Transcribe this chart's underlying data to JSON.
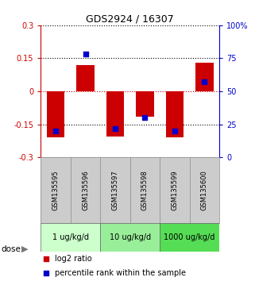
{
  "title": "GDS2924 / 16307",
  "samples": [
    "GSM135595",
    "GSM135596",
    "GSM135597",
    "GSM135598",
    "GSM135599",
    "GSM135600"
  ],
  "log2_ratio": [
    -0.21,
    0.12,
    -0.205,
    -0.115,
    -0.21,
    0.13
  ],
  "percentile_rank": [
    20,
    78,
    22,
    30,
    20,
    57
  ],
  "bar_color": "#cc0000",
  "dot_color": "#0000cc",
  "ylim": [
    -0.3,
    0.3
  ],
  "y2lim": [
    0,
    100
  ],
  "yticks": [
    -0.3,
    -0.15,
    0,
    0.15,
    0.3
  ],
  "y2ticks": [
    0,
    25,
    50,
    75,
    100
  ],
  "ytick_labels": [
    "-0.3",
    "-0.15",
    "0",
    "0.15",
    "0.3"
  ],
  "y2tick_labels": [
    "0",
    "25",
    "50",
    "75",
    "100%"
  ],
  "dose_groups": [
    {
      "label": "1 ug/kg/d",
      "samples": [
        0,
        1
      ],
      "color": "#ccffcc"
    },
    {
      "label": "10 ug/kg/d",
      "samples": [
        2,
        3
      ],
      "color": "#99ee99"
    },
    {
      "label": "1000 ug/kg/d",
      "samples": [
        4,
        5
      ],
      "color": "#55dd55"
    }
  ],
  "dose_label": "dose",
  "legend_red": "log2 ratio",
  "legend_blue": "percentile rank within the sample",
  "bar_width": 0.6,
  "background_color": "#ffffff",
  "plot_bg": "#ffffff",
  "zero_line_color": "#cc0000",
  "dotted_line_color": "#000000",
  "sample_box_color": "#cccccc"
}
